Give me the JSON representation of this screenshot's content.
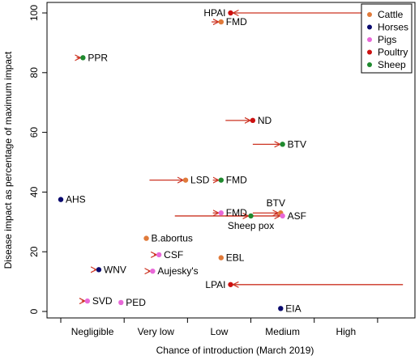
{
  "chart_data": {
    "type": "scatter",
    "xlabel": "Chance of introduction (March 2019)",
    "ylabel": "Disease impact as percentage of maximum impact",
    "categories": [
      "Negligible",
      "Very low",
      "Low",
      "Medium",
      "High"
    ],
    "xlim": [
      0,
      5.5
    ],
    "ylim": [
      0,
      100
    ],
    "y_ticks": [
      0,
      20,
      40,
      60,
      80,
      100
    ],
    "grid": false,
    "legend_position": "top-right",
    "series": [
      {
        "name": "Cattle",
        "color": "#e07a3a"
      },
      {
        "name": "Horses",
        "color": "#0a0a6e"
      },
      {
        "name": "Pigs",
        "color": "#e868d8"
      },
      {
        "name": "Poultry",
        "color": "#cc1111"
      },
      {
        "name": "Sheep",
        "color": "#1e8a2e"
      }
    ],
    "points": [
      {
        "label": "HPAI",
        "species": "Poultry",
        "x": 2.68,
        "y": 100,
        "from_x": 5.4,
        "label_side": "left"
      },
      {
        "label": "FMD",
        "species": "Cattle",
        "x": 2.53,
        "y": 97,
        "from_x": 2.38,
        "label_side": "right"
      },
      {
        "label": "PPR",
        "species": "Sheep",
        "x": 0.35,
        "y": 85,
        "from_x": 0.25,
        "label_side": "right"
      },
      {
        "label": "ND",
        "species": "Poultry",
        "x": 3.03,
        "y": 64,
        "from_x": 2.6,
        "label_side": "right"
      },
      {
        "label": "BTV",
        "species": "Sheep",
        "x": 3.5,
        "y": 56,
        "from_x": 3.03,
        "label_side": "right"
      },
      {
        "label": "LSD",
        "species": "Cattle",
        "x": 1.97,
        "y": 44,
        "from_x": 1.4,
        "label_side": "right"
      },
      {
        "label": "FMD",
        "species": "Sheep",
        "x": 2.53,
        "y": 44,
        "from_x": 2.4,
        "label_side": "right"
      },
      {
        "label": "AHS",
        "species": "Horses",
        "x": 0.0,
        "y": 37.5,
        "label_side": "right"
      },
      {
        "label": "BTV",
        "species": "Cattle",
        "x": 3.47,
        "y": 33,
        "from_x": 3.03,
        "label_side": "above"
      },
      {
        "label": "FMD",
        "species": "Pigs",
        "x": 2.53,
        "y": 33,
        "from_x": 2.4,
        "label_side": "right"
      },
      {
        "label": "ASF",
        "species": "Pigs",
        "x": 3.5,
        "y": 32,
        "from_x": 2.6,
        "label_side": "right"
      },
      {
        "label": "Sheep pox",
        "species": "Sheep",
        "x": 3.0,
        "y": 32,
        "from_x": 1.8,
        "label_side": "below"
      },
      {
        "label": "B.abortus",
        "species": "Cattle",
        "x": 1.35,
        "y": 24.5,
        "label_side": "right"
      },
      {
        "label": "CSF",
        "species": "Pigs",
        "x": 1.55,
        "y": 19,
        "from_x": 1.47,
        "label_side": "right"
      },
      {
        "label": "EBL",
        "species": "Cattle",
        "x": 2.53,
        "y": 18,
        "label_side": "right"
      },
      {
        "label": "WNV",
        "species": "Horses",
        "x": 0.6,
        "y": 14,
        "from_x": 0.53,
        "label_side": "right"
      },
      {
        "label": "Aujesky's",
        "species": "Pigs",
        "x": 1.45,
        "y": 13.5,
        "from_x": 1.38,
        "label_side": "right"
      },
      {
        "label": "LPAI",
        "species": "Poultry",
        "x": 2.68,
        "y": 9,
        "from_x": 5.4,
        "label_side": "left"
      },
      {
        "label": "SVD",
        "species": "Pigs",
        "x": 0.42,
        "y": 3.5,
        "from_x": 0.33,
        "label_side": "right"
      },
      {
        "label": "PED",
        "species": "Pigs",
        "x": 0.95,
        "y": 3,
        "label_side": "right"
      },
      {
        "label": "EIA",
        "species": "Horses",
        "x": 3.47,
        "y": 1,
        "label_side": "right"
      }
    ],
    "arrow_color": "#cc3322"
  }
}
